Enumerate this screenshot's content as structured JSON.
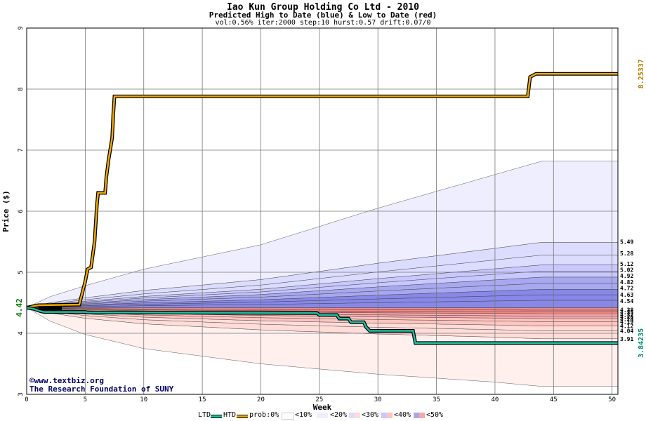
{
  "title": "Iao Kun Group Holding Co Ltd - 2010",
  "subtitle": "Predicted High to Date (blue) &  Low to Date (red)",
  "params": "vol:0.56% iter:2000 step:10 hurst:0.57 drift:0.07/0",
  "footer": {
    "site": "www.textbiz.org",
    "org": "The Research Foundation of SUNY",
    "copyright_symbol": "©"
  },
  "legend": {
    "ltd": "LTD",
    "htd": "HTD",
    "prob": "prob:0%",
    "bands": [
      "<10%",
      "<20%",
      "<30%",
      "<40%",
      "<50%"
    ]
  },
  "chart_data": {
    "type": "area",
    "title": "Iao Kun Group Holding Co Ltd - 2010",
    "xlabel": "Week",
    "ylabel": "Price ($)",
    "xlim": [
      0,
      50.5
    ],
    "ylim": [
      3,
      9
    ],
    "x_ticks": [
      0,
      5,
      10,
      15,
      20,
      25,
      30,
      35,
      40,
      45,
      50
    ],
    "y_ticks": [
      3,
      4,
      5,
      6,
      7,
      8,
      9
    ],
    "grid": true,
    "start_price": 4.42,
    "start_label": "4.42",
    "max_label": "8.25337",
    "min_label": "3.84235",
    "right_labels_high": [
      "5.49",
      "5.28",
      "5.12",
      "5.02",
      "4.92",
      "4.82",
      "4.72",
      "4.63",
      "4.54"
    ],
    "right_labels_low": [
      "4.38",
      "4.35",
      "4.32",
      "4.28",
      "4.24",
      "4.19",
      "4.12",
      "4.04",
      "3.91"
    ],
    "upper_envelope": [
      [
        0,
        4.42
      ],
      [
        2,
        4.6
      ],
      [
        5,
        4.78
      ],
      [
        10,
        5.05
      ],
      [
        20,
        5.45
      ],
      [
        30,
        6.05
      ],
      [
        40,
        6.6
      ],
      [
        44,
        6.82
      ],
      [
        50.5,
        6.82
      ]
    ],
    "lower_envelope": [
      [
        0,
        4.42
      ],
      [
        2,
        4.2
      ],
      [
        5,
        3.98
      ],
      [
        10,
        3.75
      ],
      [
        20,
        3.5
      ],
      [
        30,
        3.33
      ],
      [
        40,
        3.2
      ],
      [
        44,
        3.13
      ],
      [
        50.5,
        3.13
      ]
    ],
    "high_bands_end": [
      5.49,
      5.28,
      5.12,
      5.02,
      4.92,
      4.82,
      4.72,
      4.63,
      4.54
    ],
    "low_bands_end": [
      4.38,
      4.35,
      4.32,
      4.28,
      4.24,
      4.19,
      4.12,
      4.04,
      3.91
    ],
    "series": [
      {
        "name": "HTD",
        "color": "#f0a800",
        "points": [
          [
            0,
            4.42
          ],
          [
            0.5,
            4.44
          ],
          [
            1,
            4.46
          ],
          [
            4.5,
            4.47
          ],
          [
            4.6,
            4.55
          ],
          [
            5,
            4.85
          ],
          [
            5.2,
            5.05
          ],
          [
            5.5,
            5.08
          ],
          [
            5.8,
            5.5
          ],
          [
            6,
            6.1
          ],
          [
            6.1,
            6.3
          ],
          [
            6.7,
            6.3
          ],
          [
            6.8,
            6.55
          ],
          [
            7,
            6.85
          ],
          [
            7.3,
            7.2
          ],
          [
            7.4,
            7.6
          ],
          [
            7.5,
            7.88
          ],
          [
            42.8,
            7.88
          ],
          [
            43,
            8.2
          ],
          [
            43.5,
            8.25
          ],
          [
            50.5,
            8.25
          ]
        ]
      },
      {
        "name": "LTD",
        "color": "#20c0a0",
        "points": [
          [
            0,
            4.42
          ],
          [
            0.6,
            4.4
          ],
          [
            1.2,
            4.36
          ],
          [
            1.5,
            4.35
          ],
          [
            5,
            4.35
          ],
          [
            5.2,
            4.34
          ],
          [
            10,
            4.34
          ],
          [
            24.8,
            4.33
          ],
          [
            25,
            4.3
          ],
          [
            26.5,
            4.3
          ],
          [
            26.7,
            4.24
          ],
          [
            27.5,
            4.24
          ],
          [
            27.7,
            4.18
          ],
          [
            28.8,
            4.18
          ],
          [
            29,
            4.1
          ],
          [
            29.3,
            4.04
          ],
          [
            33,
            4.04
          ],
          [
            33.2,
            3.84
          ],
          [
            50.5,
            3.84
          ]
        ]
      }
    ],
    "colors": {
      "prob0": "#ffffff",
      "high": [
        "#eeeeff",
        "#dcdcff",
        "#c8c8ff",
        "#a8a8f0",
        "#8888e8"
      ],
      "low": [
        "#fff0ee",
        "#ffdcd8",
        "#ffc4c0",
        "#f8a8a8",
        "#f08888"
      ],
      "htd": "#f0a800",
      "ltd": "#20c0a0",
      "max_label": "#b08000",
      "min_label": "#009070",
      "start_label": "#007700"
    }
  }
}
